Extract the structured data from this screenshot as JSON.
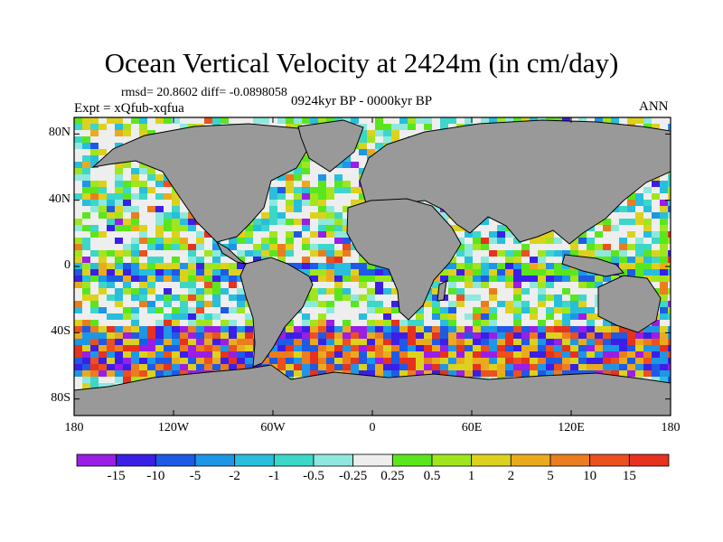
{
  "chart_data": {
    "type": "heatmap",
    "title": "Ocean Vertical Velocity at 2424m (in cm/day)",
    "stats": "rmsd= 20.8602 diff= -0.0898058",
    "expt": "Expt = xQfub-xqfua",
    "period": "0924kyr BP - 0000kyr BP",
    "season": "ANN",
    "x_ticks": [
      {
        "value": -180,
        "label": "180"
      },
      {
        "value": -120,
        "label": "120W"
      },
      {
        "value": -60,
        "label": "60W"
      },
      {
        "value": 0,
        "label": "0"
      },
      {
        "value": 60,
        "label": "60E"
      },
      {
        "value": 120,
        "label": "120E"
      },
      {
        "value": 180,
        "label": "180"
      }
    ],
    "y_ticks": [
      {
        "value": 80,
        "label": "80N"
      },
      {
        "value": 40,
        "label": "40N"
      },
      {
        "value": 0,
        "label": "0"
      },
      {
        "value": -40,
        "label": "40S"
      },
      {
        "value": -80,
        "label": "80S"
      }
    ],
    "xlim": [
      -180,
      180
    ],
    "ylim": [
      -90,
      90
    ],
    "land_color": "#999999",
    "colorbar": {
      "levels": [
        "-15",
        "-10",
        "-5",
        "-2",
        "-1",
        "-0.5",
        "-0.25",
        "0.25",
        "0.5",
        "1",
        "2",
        "5",
        "10",
        "15"
      ],
      "colors": [
        "#9a1ee6",
        "#3b1fe6",
        "#1e5ae6",
        "#1e96e6",
        "#28bedc",
        "#3cd7c8",
        "#8ee8de",
        "#eeeeee",
        "#5ae61e",
        "#a0e61e",
        "#dcd21e",
        "#ebaa1e",
        "#eb7d1e",
        "#eb501e",
        "#e6321e"
      ]
    }
  }
}
